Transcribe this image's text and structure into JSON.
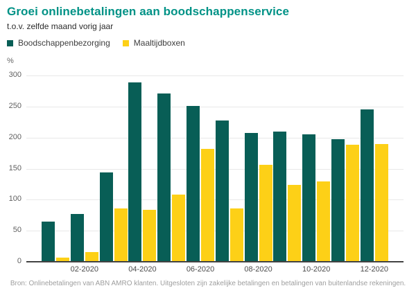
{
  "header": {
    "title": "Groei onlinebetalingen aan boodschappenservice",
    "subtitle": "t.o.v. zelfde maand vorig jaar",
    "title_color": "#009286"
  },
  "chart_data": {
    "type": "bar",
    "title": "Groei onlinebetalingen aan boodschappenservice",
    "subtitle": "t.o.v. zelfde maand vorig jaar",
    "unit_label": "%",
    "categories": [
      "01-2020",
      "02-2020",
      "03-2020",
      "04-2020",
      "05-2020",
      "06-2020",
      "07-2020",
      "08-2020",
      "09-2020",
      "10-2020",
      "11-2020",
      "12-2020"
    ],
    "x_tick_labels": [
      "02-2020",
      "04-2020",
      "06-2020",
      "08-2020",
      "10-2020",
      "12-2020"
    ],
    "series": [
      {
        "name": "Boodschappenbezorging",
        "color": "#085e56",
        "values": [
          65,
          77,
          144,
          289,
          271,
          251,
          227,
          208,
          210,
          205,
          197,
          245
        ]
      },
      {
        "name": "Maaltijdboxen",
        "color": "#fdd017",
        "values": [
          7,
          16,
          86,
          84,
          108,
          182,
          86,
          156,
          124,
          129,
          189,
          190
        ]
      }
    ],
    "ylim": [
      0,
      300
    ],
    "y_ticks": [
      0,
      50,
      100,
      150,
      200,
      250,
      300
    ],
    "grid": true,
    "legend_position": "top"
  },
  "footer": {
    "source": "Bron: Onlinebetalingen van ABN AMRO klanten. Uitgesloten zijn zakelijke betalingen en betalingen van buitenlandse rekeningen."
  }
}
